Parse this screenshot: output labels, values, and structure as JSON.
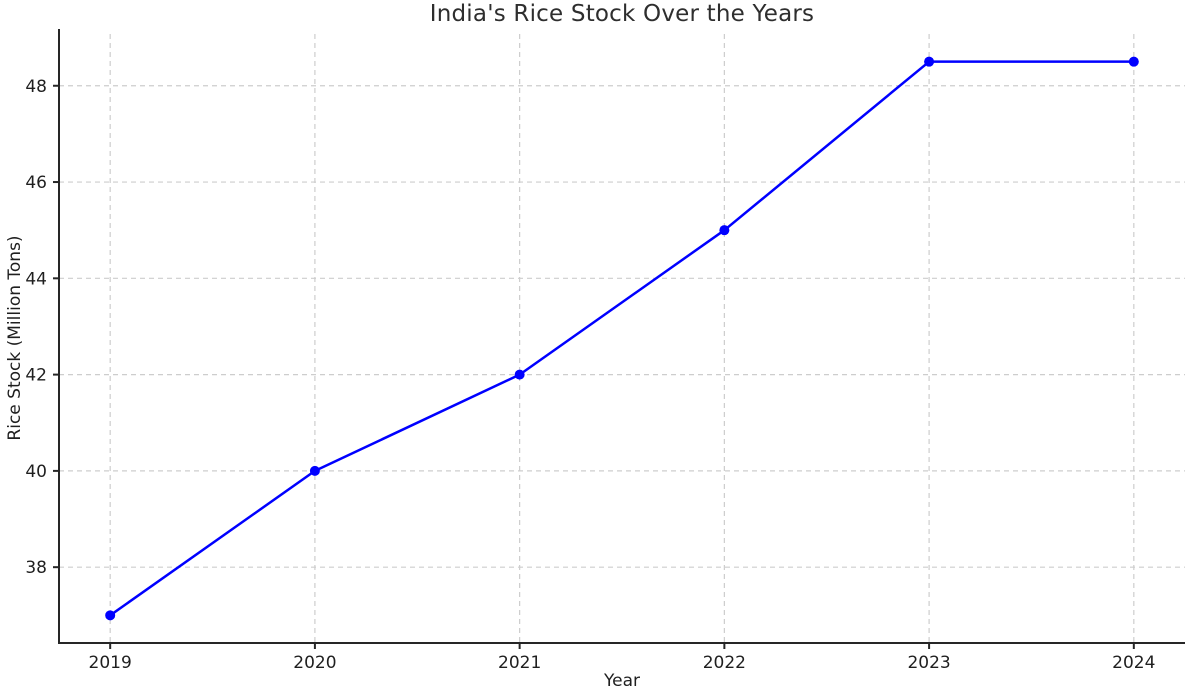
{
  "chart_data": {
    "type": "line",
    "title": "India's Rice Stock Over the Years",
    "xlabel": "Year",
    "ylabel": "Rice Stock (Million Tons)",
    "x": [
      2019,
      2020,
      2021,
      2022,
      2023,
      2024
    ],
    "series": [
      {
        "name": "Rice Stock",
        "values": [
          37,
          40,
          42,
          45,
          48.5,
          48.5
        ]
      }
    ],
    "xticks": [
      2019,
      2020,
      2021,
      2022,
      2023,
      2024
    ],
    "xtick_labels": [
      "2019",
      "2020",
      "2021",
      "2022",
      "2023",
      "2024"
    ],
    "yticks": [
      38,
      40,
      42,
      44,
      46,
      48
    ],
    "ytick_labels": [
      "38",
      "40",
      "42",
      "44",
      "46",
      "48"
    ],
    "xlim": [
      2018.75,
      2024.25
    ],
    "ylim": [
      36.425,
      49.075
    ],
    "grid": true,
    "grid_style": "dashed",
    "legend": "none",
    "spines": [
      "left",
      "bottom"
    ],
    "marker": "circle",
    "colors": {
      "line": "#0000ff",
      "marker": "#0000ff",
      "grid": "#cdcdcd",
      "axis": "#262626",
      "text": "#1f1f1f",
      "title": "#2e2e2e",
      "background": "#ffffff"
    }
  }
}
